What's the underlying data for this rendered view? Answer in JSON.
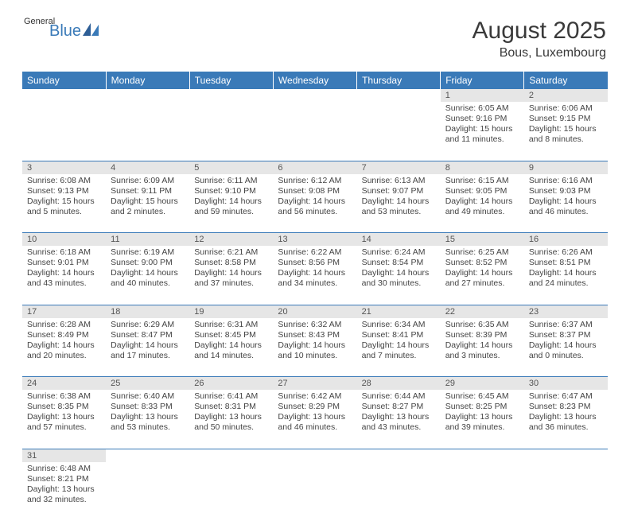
{
  "logo": {
    "general": "General",
    "blue": "Blue"
  },
  "title": "August 2025",
  "location": "Bous, Luxembourg",
  "colors": {
    "header_bg": "#3a7ab8",
    "header_text": "#ffffff",
    "daynum_bg": "#e6e6e6",
    "border": "#3a7ab8",
    "text": "#444444"
  },
  "day_names": [
    "Sunday",
    "Monday",
    "Tuesday",
    "Wednesday",
    "Thursday",
    "Friday",
    "Saturday"
  ],
  "weeks": [
    [
      null,
      null,
      null,
      null,
      null,
      {
        "n": "1",
        "sr": "Sunrise: 6:05 AM",
        "ss": "Sunset: 9:16 PM",
        "dl": "Daylight: 15 hours and 11 minutes."
      },
      {
        "n": "2",
        "sr": "Sunrise: 6:06 AM",
        "ss": "Sunset: 9:15 PM",
        "dl": "Daylight: 15 hours and 8 minutes."
      }
    ],
    [
      {
        "n": "3",
        "sr": "Sunrise: 6:08 AM",
        "ss": "Sunset: 9:13 PM",
        "dl": "Daylight: 15 hours and 5 minutes."
      },
      {
        "n": "4",
        "sr": "Sunrise: 6:09 AM",
        "ss": "Sunset: 9:11 PM",
        "dl": "Daylight: 15 hours and 2 minutes."
      },
      {
        "n": "5",
        "sr": "Sunrise: 6:11 AM",
        "ss": "Sunset: 9:10 PM",
        "dl": "Daylight: 14 hours and 59 minutes."
      },
      {
        "n": "6",
        "sr": "Sunrise: 6:12 AM",
        "ss": "Sunset: 9:08 PM",
        "dl": "Daylight: 14 hours and 56 minutes."
      },
      {
        "n": "7",
        "sr": "Sunrise: 6:13 AM",
        "ss": "Sunset: 9:07 PM",
        "dl": "Daylight: 14 hours and 53 minutes."
      },
      {
        "n": "8",
        "sr": "Sunrise: 6:15 AM",
        "ss": "Sunset: 9:05 PM",
        "dl": "Daylight: 14 hours and 49 minutes."
      },
      {
        "n": "9",
        "sr": "Sunrise: 6:16 AM",
        "ss": "Sunset: 9:03 PM",
        "dl": "Daylight: 14 hours and 46 minutes."
      }
    ],
    [
      {
        "n": "10",
        "sr": "Sunrise: 6:18 AM",
        "ss": "Sunset: 9:01 PM",
        "dl": "Daylight: 14 hours and 43 minutes."
      },
      {
        "n": "11",
        "sr": "Sunrise: 6:19 AM",
        "ss": "Sunset: 9:00 PM",
        "dl": "Daylight: 14 hours and 40 minutes."
      },
      {
        "n": "12",
        "sr": "Sunrise: 6:21 AM",
        "ss": "Sunset: 8:58 PM",
        "dl": "Daylight: 14 hours and 37 minutes."
      },
      {
        "n": "13",
        "sr": "Sunrise: 6:22 AM",
        "ss": "Sunset: 8:56 PM",
        "dl": "Daylight: 14 hours and 34 minutes."
      },
      {
        "n": "14",
        "sr": "Sunrise: 6:24 AM",
        "ss": "Sunset: 8:54 PM",
        "dl": "Daylight: 14 hours and 30 minutes."
      },
      {
        "n": "15",
        "sr": "Sunrise: 6:25 AM",
        "ss": "Sunset: 8:52 PM",
        "dl": "Daylight: 14 hours and 27 minutes."
      },
      {
        "n": "16",
        "sr": "Sunrise: 6:26 AM",
        "ss": "Sunset: 8:51 PM",
        "dl": "Daylight: 14 hours and 24 minutes."
      }
    ],
    [
      {
        "n": "17",
        "sr": "Sunrise: 6:28 AM",
        "ss": "Sunset: 8:49 PM",
        "dl": "Daylight: 14 hours and 20 minutes."
      },
      {
        "n": "18",
        "sr": "Sunrise: 6:29 AM",
        "ss": "Sunset: 8:47 PM",
        "dl": "Daylight: 14 hours and 17 minutes."
      },
      {
        "n": "19",
        "sr": "Sunrise: 6:31 AM",
        "ss": "Sunset: 8:45 PM",
        "dl": "Daylight: 14 hours and 14 minutes."
      },
      {
        "n": "20",
        "sr": "Sunrise: 6:32 AM",
        "ss": "Sunset: 8:43 PM",
        "dl": "Daylight: 14 hours and 10 minutes."
      },
      {
        "n": "21",
        "sr": "Sunrise: 6:34 AM",
        "ss": "Sunset: 8:41 PM",
        "dl": "Daylight: 14 hours and 7 minutes."
      },
      {
        "n": "22",
        "sr": "Sunrise: 6:35 AM",
        "ss": "Sunset: 8:39 PM",
        "dl": "Daylight: 14 hours and 3 minutes."
      },
      {
        "n": "23",
        "sr": "Sunrise: 6:37 AM",
        "ss": "Sunset: 8:37 PM",
        "dl": "Daylight: 14 hours and 0 minutes."
      }
    ],
    [
      {
        "n": "24",
        "sr": "Sunrise: 6:38 AM",
        "ss": "Sunset: 8:35 PM",
        "dl": "Daylight: 13 hours and 57 minutes."
      },
      {
        "n": "25",
        "sr": "Sunrise: 6:40 AM",
        "ss": "Sunset: 8:33 PM",
        "dl": "Daylight: 13 hours and 53 minutes."
      },
      {
        "n": "26",
        "sr": "Sunrise: 6:41 AM",
        "ss": "Sunset: 8:31 PM",
        "dl": "Daylight: 13 hours and 50 minutes."
      },
      {
        "n": "27",
        "sr": "Sunrise: 6:42 AM",
        "ss": "Sunset: 8:29 PM",
        "dl": "Daylight: 13 hours and 46 minutes."
      },
      {
        "n": "28",
        "sr": "Sunrise: 6:44 AM",
        "ss": "Sunset: 8:27 PM",
        "dl": "Daylight: 13 hours and 43 minutes."
      },
      {
        "n": "29",
        "sr": "Sunrise: 6:45 AM",
        "ss": "Sunset: 8:25 PM",
        "dl": "Daylight: 13 hours and 39 minutes."
      },
      {
        "n": "30",
        "sr": "Sunrise: 6:47 AM",
        "ss": "Sunset: 8:23 PM",
        "dl": "Daylight: 13 hours and 36 minutes."
      }
    ],
    [
      {
        "n": "31",
        "sr": "Sunrise: 6:48 AM",
        "ss": "Sunset: 8:21 PM",
        "dl": "Daylight: 13 hours and 32 minutes."
      },
      null,
      null,
      null,
      null,
      null,
      null
    ]
  ]
}
